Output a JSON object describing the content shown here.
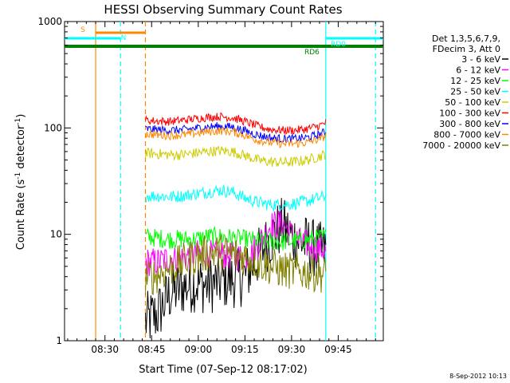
{
  "chart_data": {
    "type": "line",
    "title": "HESSI Observing Summary Count Rates",
    "xlabel": "Start Time (07-Sep-12 08:17:02)",
    "ylabel": "Count Rate (s⁻¹ detector⁻¹)",
    "ylabel_parts": {
      "base": "Count Rate (s",
      "exp1": "-1",
      "mid": " detector",
      "exp2": "-1",
      "end": ")"
    },
    "y_scale": "log",
    "ylim": [
      1,
      1000
    ],
    "xlim_minutes_after_0817": [
      0,
      102.5
    ],
    "x_ticks": [
      "08:30",
      "08:45",
      "09:00",
      "09:15",
      "09:30",
      "09:45"
    ],
    "x_tick_minutes": [
      13,
      28,
      43,
      58,
      73,
      88
    ],
    "y_ticks": [
      {
        "label": "1",
        "value": 1
      },
      {
        "label": "10",
        "value": 10
      },
      {
        "label": "100",
        "value": 100
      },
      {
        "label": "1000",
        "value": 1000
      }
    ],
    "legend_position": "right",
    "legend_header": [
      "Det 1,3,5,6,7,9,",
      "FDecim 3, Att 0"
    ],
    "timestamp": "8-Sep-2012 10:13",
    "time_x": [
      26,
      30,
      34,
      38,
      42,
      46,
      50,
      54,
      58,
      62,
      66,
      70,
      74,
      78,
      82,
      84
    ],
    "series": [
      {
        "name": "3 - 6 keV",
        "color": "#000000",
        "values": [
          1.5,
          1.8,
          2.8,
          3.2,
          3.5,
          3.3,
          3.6,
          3.8,
          4,
          6,
          9,
          12,
          9,
          8,
          7,
          7
        ]
      },
      {
        "name": "6 - 12 keV",
        "color": "#ff00ff",
        "values": [
          5.5,
          5.5,
          6,
          6,
          6.5,
          6.5,
          6.5,
          6.3,
          6,
          8,
          12,
          13,
          9,
          8,
          7.5,
          7
        ]
      },
      {
        "name": "12 - 25 keV",
        "color": "#00ff00",
        "values": [
          9.5,
          9.2,
          9,
          9,
          9,
          9.5,
          9.5,
          9.3,
          9,
          8.7,
          8.5,
          8.5,
          8.6,
          8.8,
          9.2,
          9.5
        ]
      },
      {
        "name": "25 - 50 keV",
        "color": "#00ffff",
        "values": [
          23,
          23,
          22.5,
          23,
          24,
          25,
          26,
          25,
          22,
          20,
          19,
          19,
          19.5,
          20.5,
          22,
          23
        ]
      },
      {
        "name": "50 - 100 keV",
        "color": "#cccc00",
        "values": [
          58,
          57,
          56,
          56,
          58,
          60,
          61,
          60,
          55,
          50,
          48,
          47.5,
          48,
          50,
          54,
          57
        ]
      },
      {
        "name": "100 - 300 keV",
        "color": "#ff0000",
        "values": [
          118,
          116,
          115,
          118,
          122,
          126,
          128,
          125,
          115,
          104,
          97,
          95,
          95,
          98,
          105,
          112
        ]
      },
      {
        "name": "300 - 800 keV",
        "color": "#0000ff",
        "values": [
          98,
          96,
          95,
          96,
          99,
          102,
          104,
          102,
          94,
          86,
          81,
          79,
          79,
          81,
          87,
          92
        ]
      },
      {
        "name": "800 - 7000 keV",
        "color": "#ff8800",
        "values": [
          88,
          86,
          85,
          86,
          89,
          92,
          94,
          92,
          85,
          77,
          73,
          71,
          71,
          73,
          79,
          84
        ]
      },
      {
        "name": "7000 - 20000 keV",
        "color": "#808000",
        "values": [
          3.8,
          4.2,
          4.8,
          5.5,
          6.2,
          6.6,
          6.8,
          6.5,
          6.2,
          5.5,
          5,
          4.6,
          4.5,
          4.4,
          4.3,
          4.2
        ]
      }
    ],
    "annotations": {
      "flags": [
        {
          "label": "S",
          "color": "#ff8800",
          "value_text": "",
          "start": 10,
          "end": 26
        },
        {
          "label": "N",
          "color": "#00ffff",
          "value_text": "",
          "start": 0,
          "end": 18
        },
        {
          "label": "RD0",
          "color": "#00ffff",
          "value_text": "",
          "start": 84,
          "end": 102.5
        },
        {
          "label": "RD6",
          "color": "#008000",
          "value_text": "",
          "start": 0,
          "end": 102.5
        }
      ],
      "markers": [
        {
          "minutes": 10,
          "style": "solid",
          "color": "#ff8800"
        },
        {
          "minutes": 18,
          "style": "dashed",
          "color": "#00ffff"
        },
        {
          "minutes": 26,
          "style": "dashed",
          "color": "#ff8800"
        },
        {
          "minutes": 84,
          "style": "solid",
          "color": "#00ffff"
        },
        {
          "minutes": 100,
          "style": "dashed",
          "color": "#00ffff"
        }
      ]
    },
    "grid": false
  }
}
